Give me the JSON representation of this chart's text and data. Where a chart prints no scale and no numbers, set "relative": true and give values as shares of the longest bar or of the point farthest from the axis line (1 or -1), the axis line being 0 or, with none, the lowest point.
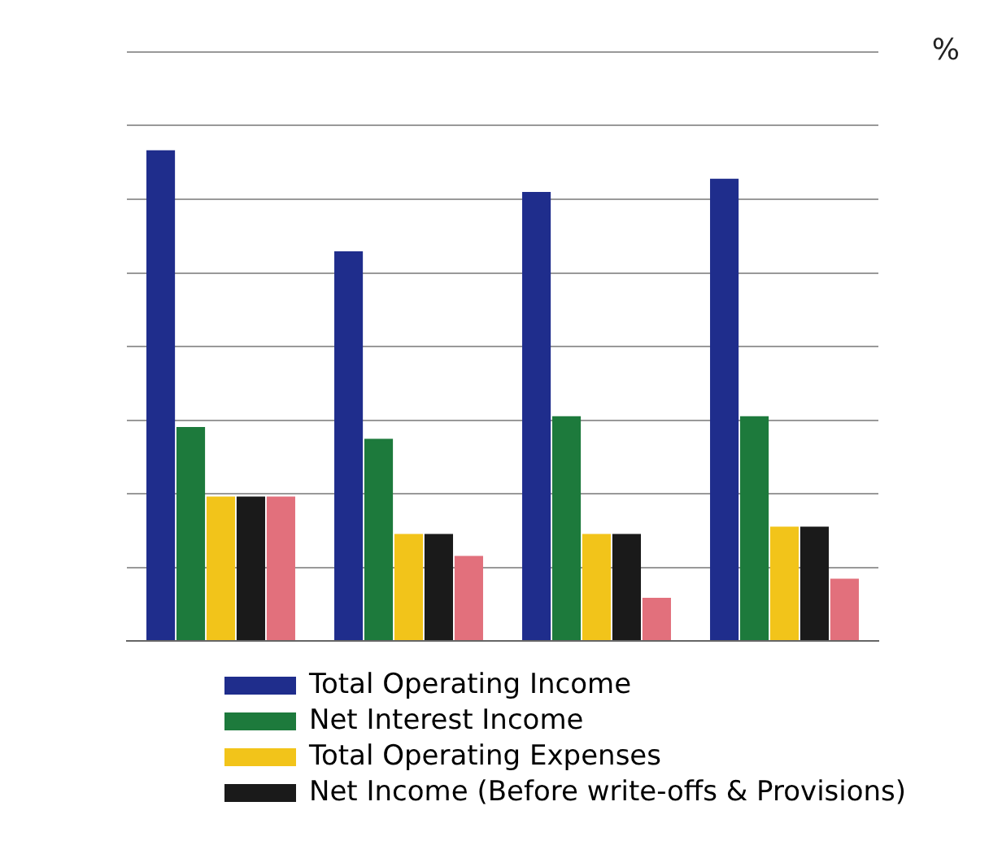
{
  "chart_data": {
    "type": "bar",
    "relative": true,
    "categories": [
      null,
      null,
      null,
      null
    ],
    "series": [
      {
        "name": "Total Operating Income",
        "color": "#1f2d8c",
        "values": [
          1,
          0.794,
          0.915,
          0.942
        ]
      },
      {
        "name": "Net Interest Income",
        "color": "#1d7a3c",
        "values": [
          0.436,
          0.412,
          0.458,
          0.458
        ]
      },
      {
        "name": "Total Operating Expenses",
        "color": "#f2c41a",
        "values": [
          0.294,
          0.218,
          0.218,
          0.233
        ]
      },
      {
        "name": "Net Income (Before write-offs & Provisions)",
        "color": "#1a1a1a",
        "values": [
          0.294,
          0.218,
          0.218,
          0.233
        ]
      },
      {
        "color": "#e2707c",
        "values": [
          0.294,
          0.173,
          0.088,
          0.127
        ]
      }
    ],
    "annotations": [
      "%"
    ],
    "grid": "y",
    "legend": "bottom"
  }
}
